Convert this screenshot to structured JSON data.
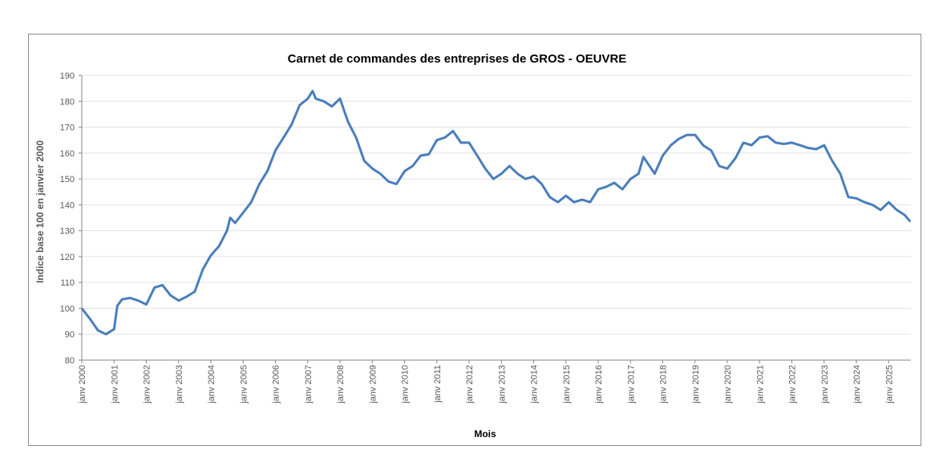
{
  "chart_data": {
    "type": "line",
    "title": "Carnet de commandes des entreprises de GROS - OEUVRE",
    "xlabel": "Mois",
    "ylabel": "Indice base 100 en janvier 2000",
    "ylim": [
      80,
      190
    ],
    "yticks": [
      80,
      90,
      100,
      110,
      120,
      130,
      140,
      150,
      160,
      170,
      180,
      190
    ],
    "xtick_labels": [
      "janv 2000",
      "janv 2001",
      "janv 2002",
      "janv 2003",
      "janv 2004",
      "janv 2005",
      "janv 2006",
      "janv 2007",
      "janv 2008",
      "janv 2009",
      "janv 2010",
      "janv 2011",
      "janv 2012",
      "janv 2013",
      "janv 2014",
      "janv 2015",
      "janv 2016",
      "janv 2017",
      "janv 2018",
      "janv 2019",
      "janv 2020",
      "janv 2021",
      "janv 2022",
      "janv 2023",
      "janv 2024",
      "janv 2025"
    ],
    "grid": true,
    "legend": "none",
    "color": "#4a7ebb",
    "series": [
      {
        "name": "Indice",
        "x": [
          2000.0,
          2000.25,
          2000.5,
          2000.75,
          2001.0,
          2001.1,
          2001.25,
          2001.5,
          2001.75,
          2002.0,
          2002.25,
          2002.5,
          2002.75,
          2003.0,
          2003.25,
          2003.5,
          2003.75,
          2004.0,
          2004.25,
          2004.5,
          2004.6,
          2004.75,
          2005.0,
          2005.25,
          2005.5,
          2005.75,
          2006.0,
          2006.25,
          2006.5,
          2006.75,
          2007.0,
          2007.15,
          2007.25,
          2007.5,
          2007.75,
          2008.0,
          2008.25,
          2008.5,
          2008.75,
          2009.0,
          2009.25,
          2009.5,
          2009.75,
          2010.0,
          2010.25,
          2010.5,
          2010.75,
          2011.0,
          2011.25,
          2011.5,
          2011.75,
          2012.0,
          2012.25,
          2012.5,
          2012.75,
          2013.0,
          2013.25,
          2013.5,
          2013.75,
          2014.0,
          2014.25,
          2014.5,
          2014.75,
          2015.0,
          2015.25,
          2015.5,
          2015.75,
          2016.0,
          2016.25,
          2016.5,
          2016.75,
          2017.0,
          2017.25,
          2017.4,
          2017.75,
          2018.0,
          2018.25,
          2018.5,
          2018.75,
          2019.0,
          2019.25,
          2019.5,
          2019.75,
          2020.0,
          2020.25,
          2020.5,
          2020.75,
          2021.0,
          2021.25,
          2021.5,
          2021.75,
          2022.0,
          2022.25,
          2022.5,
          2022.75,
          2023.0,
          2023.25,
          2023.5,
          2023.75,
          2024.0,
          2024.25,
          2024.5,
          2024.75,
          2025.0,
          2025.25,
          2025.5,
          2025.67
        ],
        "values": [
          100,
          96,
          91.5,
          90,
          92,
          101,
          103.5,
          104,
          103,
          101.5,
          108,
          109,
          105,
          103,
          104.5,
          106.5,
          115,
          120.5,
          124,
          130,
          135,
          133,
          137,
          141,
          148,
          153,
          161,
          166,
          171,
          178.5,
          181,
          184,
          181,
          180,
          178,
          181,
          172,
          166,
          157,
          154,
          152,
          149,
          148,
          153,
          155,
          159,
          159.5,
          165,
          166,
          168.5,
          164,
          164,
          159,
          154,
          150,
          152,
          155,
          152,
          150,
          151,
          148,
          143,
          141,
          143.5,
          141,
          142,
          141,
          146,
          147,
          148.5,
          146,
          150,
          152,
          158.5,
          152,
          159,
          163,
          165.5,
          167,
          167,
          163,
          161,
          155,
          154,
          158,
          164,
          163,
          166,
          166.5,
          164,
          163.5,
          164,
          163,
          162,
          161.5,
          163,
          157,
          152,
          143,
          142.5,
          141,
          140,
          138,
          141,
          138,
          136,
          133.5
        ]
      }
    ]
  }
}
